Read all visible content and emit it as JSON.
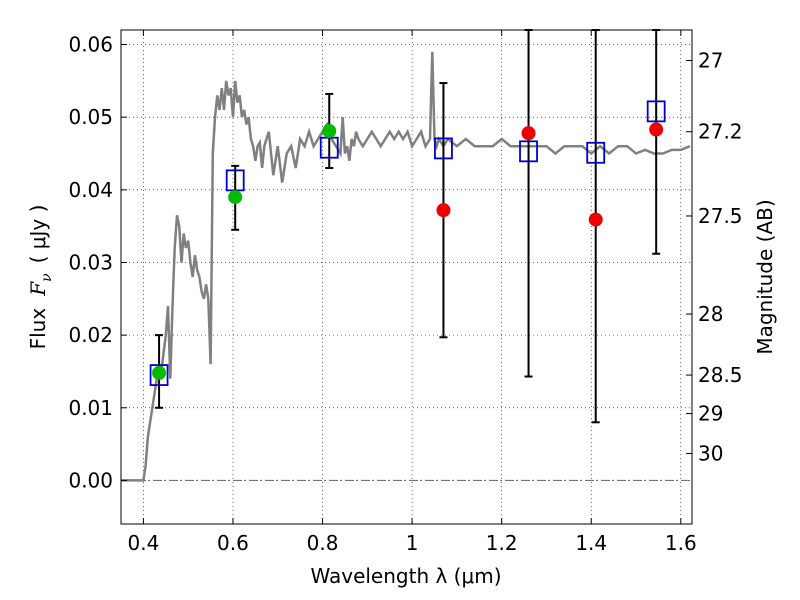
{
  "chart_data": {
    "type": "scatter",
    "title": "",
    "xlabel": "Wavelength  λ (μm)",
    "ylabel_left_prefix": "Flux",
    "ylabel_left_symbol": "F",
    "ylabel_left_sub": "ν",
    "ylabel_left_unit": "( μJy )",
    "ylabel_right": "Magnitude (AB)",
    "xlim": [
      0.35,
      1.625
    ],
    "ylim": [
      -0.006,
      0.062
    ],
    "grid": true,
    "x_ticks": [
      {
        "value": 0.4,
        "label": "0.4"
      },
      {
        "value": 0.6,
        "label": "0.6"
      },
      {
        "value": 0.8,
        "label": "0.8"
      },
      {
        "value": 1.0,
        "label": "1"
      },
      {
        "value": 1.2,
        "label": "1.2"
      },
      {
        "value": 1.4,
        "label": "1.4"
      },
      {
        "value": 1.6,
        "label": "1.6"
      }
    ],
    "y_ticks": [
      {
        "value": 0.0,
        "label": "0.00"
      },
      {
        "value": 0.01,
        "label": "0.01"
      },
      {
        "value": 0.02,
        "label": "0.02"
      },
      {
        "value": 0.03,
        "label": "0.03"
      },
      {
        "value": 0.04,
        "label": "0.04"
      },
      {
        "value": 0.05,
        "label": "0.05"
      },
      {
        "value": 0.06,
        "label": "0.06"
      }
    ],
    "right_ticks": [
      {
        "flux": 0.0578,
        "label": "27"
      },
      {
        "flux": 0.048,
        "label": "27.2"
      },
      {
        "flux": 0.0364,
        "label": "27.5"
      },
      {
        "flux": 0.0229,
        "label": "28"
      },
      {
        "flux": 0.0145,
        "label": "28.5"
      },
      {
        "flux": 0.0092,
        "label": "29"
      },
      {
        "flux": 0.0037,
        "label": "30"
      }
    ],
    "model_spectrum": {
      "color": "#808080",
      "x": [
        0.35,
        0.4,
        0.405,
        0.41,
        0.42,
        0.43,
        0.44,
        0.45,
        0.455,
        0.46,
        0.465,
        0.47,
        0.475,
        0.48,
        0.485,
        0.49,
        0.495,
        0.5,
        0.505,
        0.51,
        0.515,
        0.52,
        0.525,
        0.53,
        0.535,
        0.54,
        0.545,
        0.55,
        0.555,
        0.56,
        0.565,
        0.57,
        0.575,
        0.58,
        0.585,
        0.59,
        0.595,
        0.6,
        0.605,
        0.61,
        0.615,
        0.62,
        0.625,
        0.63,
        0.635,
        0.64,
        0.645,
        0.65,
        0.655,
        0.66,
        0.665,
        0.67,
        0.675,
        0.68,
        0.69,
        0.7,
        0.71,
        0.72,
        0.73,
        0.74,
        0.75,
        0.76,
        0.77,
        0.78,
        0.79,
        0.8,
        0.81,
        0.82,
        0.83,
        0.84,
        0.845,
        0.85,
        0.855,
        0.86,
        0.865,
        0.87,
        0.875,
        0.88,
        0.89,
        0.9,
        0.91,
        0.92,
        0.93,
        0.94,
        0.95,
        0.96,
        0.97,
        0.98,
        0.99,
        1.0,
        1.01,
        1.02,
        1.03,
        1.04,
        1.045,
        1.05,
        1.055,
        1.06,
        1.07,
        1.08,
        1.1,
        1.12,
        1.14,
        1.16,
        1.18,
        1.2,
        1.22,
        1.24,
        1.26,
        1.28,
        1.3,
        1.32,
        1.34,
        1.36,
        1.38,
        1.4,
        1.42,
        1.44,
        1.46,
        1.48,
        1.5,
        1.52,
        1.54,
        1.56,
        1.58,
        1.6,
        1.62
      ],
      "y": [
        0.0,
        0.0,
        0.002,
        0.006,
        0.01,
        0.014,
        0.015,
        0.02,
        0.024,
        0.014,
        0.024,
        0.032,
        0.0365,
        0.035,
        0.03,
        0.034,
        0.032,
        0.033,
        0.03,
        0.028,
        0.031,
        0.029,
        0.028,
        0.026,
        0.025,
        0.027,
        0.025,
        0.016,
        0.045,
        0.05,
        0.053,
        0.051,
        0.054,
        0.051,
        0.055,
        0.053,
        0.054,
        0.05,
        0.055,
        0.052,
        0.053,
        0.05,
        0.051,
        0.049,
        0.05,
        0.047,
        0.046,
        0.044,
        0.046,
        0.0465,
        0.043,
        0.046,
        0.047,
        0.048,
        0.042,
        0.046,
        0.041,
        0.045,
        0.046,
        0.043,
        0.047,
        0.046,
        0.048,
        0.046,
        0.047,
        0.048,
        0.049,
        0.047,
        0.046,
        0.045,
        0.05,
        0.045,
        0.046,
        0.044,
        0.047,
        0.046,
        0.048,
        0.047,
        0.046,
        0.047,
        0.048,
        0.047,
        0.046,
        0.047,
        0.048,
        0.047,
        0.048,
        0.047,
        0.048,
        0.046,
        0.047,
        0.048,
        0.046,
        0.047,
        0.059,
        0.047,
        0.046,
        0.047,
        0.046,
        0.047,
        0.046,
        0.047,
        0.046,
        0.046,
        0.046,
        0.047,
        0.046,
        0.046,
        0.046,
        0.046,
        0.046,
        0.045,
        0.046,
        0.046,
        0.046,
        0.045,
        0.046,
        0.045,
        0.046,
        0.046,
        0.045,
        0.0455,
        0.045,
        0.045,
        0.0455,
        0.0455,
        0.046
      ]
    },
    "series": [
      {
        "marker": "open-square",
        "color": "#0000cc",
        "points": [
          {
            "x": 0.435,
            "y": 0.0145
          },
          {
            "x": 0.605,
            "y": 0.0413
          },
          {
            "x": 0.815,
            "y": 0.0458
          },
          {
            "x": 1.07,
            "y": 0.0457
          },
          {
            "x": 1.26,
            "y": 0.0453
          },
          {
            "x": 1.41,
            "y": 0.0451
          },
          {
            "x": 1.545,
            "y": 0.0508
          }
        ]
      },
      {
        "marker": "filled-circle",
        "color": "#00bb00",
        "points": [
          {
            "x": 0.435,
            "y": 0.0148,
            "err_lo": 0.01,
            "err_hi": 0.02
          },
          {
            "x": 0.605,
            "y": 0.039,
            "err_lo": 0.0345,
            "err_hi": 0.0433
          },
          {
            "x": 0.815,
            "y": 0.0481,
            "err_lo": 0.043,
            "err_hi": 0.0532
          }
        ]
      },
      {
        "marker": "filled-circle",
        "color": "#ee0000",
        "points": [
          {
            "x": 1.07,
            "y": 0.0372,
            "err_lo": 0.0197,
            "err_hi": 0.0547
          },
          {
            "x": 1.26,
            "y": 0.0478,
            "err_lo": 0.0143,
            "err_hi": 0.062
          },
          {
            "x": 1.41,
            "y": 0.0359,
            "err_lo": 0.008,
            "err_hi": 0.062
          },
          {
            "x": 1.545,
            "y": 0.0483,
            "err_lo": 0.0312,
            "err_hi": 0.062
          }
        ]
      }
    ]
  }
}
